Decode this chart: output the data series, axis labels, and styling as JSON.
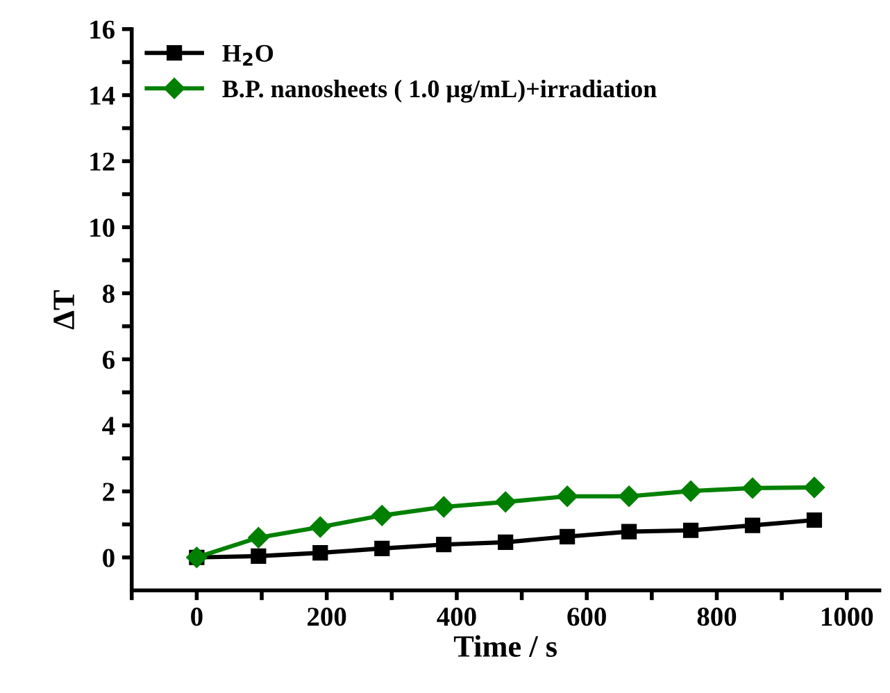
{
  "chart_data": {
    "type": "line",
    "xlabel": "Time / s",
    "ylabel": "ΔT",
    "x": [
      0,
      95,
      190,
      285,
      380,
      475,
      570,
      665,
      760,
      855,
      950
    ],
    "series": [
      {
        "name": "H$_{2}$O",
        "color": "#000000",
        "marker": "square",
        "values": [
          0,
          0.04,
          0.14,
          0.27,
          0.39,
          0.46,
          0.63,
          0.78,
          0.82,
          0.97,
          1.13
        ]
      },
      {
        "name": "B.P. nanosheets ( 1.0 μg/mL)+irradiation",
        "color": "#008000",
        "marker": "diamond",
        "values": [
          0,
          0.6,
          0.92,
          1.27,
          1.53,
          1.68,
          1.85,
          1.85,
          2.01,
          2.1,
          2.12
        ]
      }
    ],
    "xlim": [
      -100,
      1050
    ],
    "ylim": [
      -1,
      16
    ],
    "xticks": [
      {
        "value": -100,
        "label": null
      },
      0,
      {
        "value": 100,
        "label": null
      },
      200,
      {
        "value": 300,
        "label": null
      },
      400,
      {
        "value": 500,
        "label": null
      },
      600,
      {
        "value": 700,
        "label": null
      },
      800,
      {
        "value": 900,
        "label": null
      },
      1000
    ],
    "yticks": [
      0,
      {
        "value": 1,
        "label": null
      },
      2,
      {
        "value": 3,
        "label": null
      },
      4,
      {
        "value": 5,
        "label": null
      },
      6,
      {
        "value": 7,
        "label": null
      },
      8,
      {
        "value": 9,
        "label": null
      },
      10,
      {
        "value": 11,
        "label": null
      },
      12,
      {
        "value": 13,
        "label": null
      },
      14,
      {
        "value": 15,
        "label": null
      },
      16
    ],
    "legend": "top left",
    "grid": false,
    "line_style": "solid"
  }
}
